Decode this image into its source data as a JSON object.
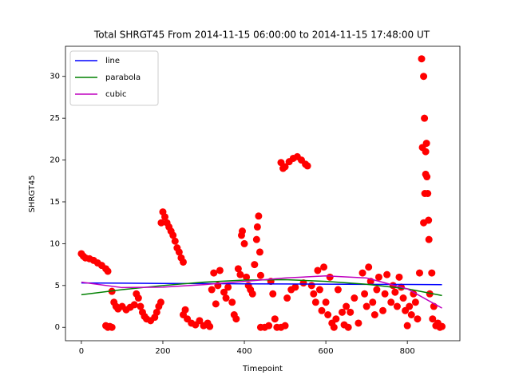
{
  "chart_data": {
    "type": "scatter",
    "title": "Total SHRGT45 From 2014-11-15 06:00:00 to 2014-11-15 17:48:00 UT",
    "xlabel": "Timepoint",
    "ylabel": "SHRGT45",
    "color": "#ff0000",
    "x": [
      0,
      5,
      10,
      20,
      30,
      40,
      50,
      60,
      65,
      60,
      65,
      70,
      75,
      75,
      80,
      85,
      90,
      100,
      110,
      120,
      130,
      135,
      140,
      145,
      150,
      155,
      160,
      170,
      180,
      185,
      190,
      195,
      196,
      200,
      205,
      210,
      215,
      220,
      225,
      230,
      235,
      240,
      245,
      250,
      250,
      255,
      260,
      270,
      280,
      290,
      300,
      310,
      315,
      320,
      325,
      330,
      335,
      340,
      350,
      355,
      360,
      370,
      375,
      380,
      385,
      390,
      393,
      395,
      400,
      405,
      410,
      415,
      420,
      425,
      430,
      432,
      435,
      438,
      440,
      440,
      450,
      460,
      465,
      470,
      475,
      480,
      490,
      500,
      490,
      495,
      500,
      510,
      520,
      530,
      540,
      550,
      555,
      505,
      515,
      525,
      545,
      565,
      570,
      575,
      580,
      585,
      590,
      595,
      600,
      605,
      610,
      615,
      620,
      625,
      630,
      640,
      645,
      650,
      655,
      660,
      670,
      680,
      690,
      695,
      700,
      705,
      710,
      715,
      720,
      725,
      730,
      740,
      745,
      750,
      760,
      765,
      770,
      775,
      780,
      785,
      790,
      795,
      800,
      805,
      810,
      815,
      820,
      825,
      830,
      835,
      837,
      840,
      842,
      843,
      845,
      847,
      848,
      850,
      852,
      853,
      855,
      860,
      862,
      865,
      870,
      875,
      880,
      885,
      840,
      845
    ],
    "values": [
      8.8,
      8.5,
      8.3,
      8.2,
      8.0,
      7.7,
      7.4,
      7.0,
      6.7,
      0.2,
      0,
      0.1,
      0,
      4.3,
      3.0,
      2.5,
      2.2,
      2.5,
      2.1,
      2.4,
      2.7,
      4.0,
      3.5,
      2.5,
      1.8,
      1.3,
      1.0,
      0.8,
      1.2,
      1.8,
      2.5,
      3.0,
      12.5,
      13.8,
      13.2,
      12.5,
      12.0,
      11.5,
      11.0,
      10.3,
      9.5,
      9.0,
      8.3,
      7.8,
      1.5,
      2.1,
      1.0,
      0.5,
      0.3,
      0.8,
      0.2,
      0.5,
      0.1,
      4.5,
      6.5,
      2.8,
      5.0,
      6.8,
      4.2,
      3.5,
      4.8,
      3.0,
      1.5,
      1.0,
      7.0,
      6.3,
      11.0,
      11.5,
      10.0,
      6.0,
      5.0,
      4.5,
      4.0,
      7.5,
      10.5,
      12.0,
      13.3,
      9.0,
      6.2,
      0,
      0,
      0.2,
      5.5,
      4.0,
      1.0,
      0,
      0,
      0.2,
      19.7,
      19.0,
      19.2,
      19.8,
      20.2,
      20.4,
      20.0,
      19.5,
      19.3,
      3.5,
      4.5,
      4.8,
      5.3,
      5.0,
      4.0,
      3.0,
      6.8,
      4.5,
      2.0,
      7.2,
      3.0,
      1.5,
      6.0,
      0.5,
      0,
      1.0,
      4.5,
      1.8,
      0.3,
      2.5,
      0,
      1.8,
      3.5,
      0.5,
      6.5,
      4.0,
      2.5,
      7.2,
      5.5,
      3.0,
      1.5,
      4.5,
      6.0,
      2.0,
      4.0,
      6.3,
      3.0,
      5.0,
      4.2,
      2.5,
      6.0,
      4.8,
      3.5,
      2.0,
      0.2,
      2.5,
      1.5,
      4.0,
      3.0,
      1.0,
      6.5,
      32.1,
      21.5,
      30.0,
      25.0,
      16.0,
      21.0,
      22.0,
      18.0,
      16.0,
      12.8,
      10.5,
      4.0,
      6.5,
      1.0,
      2.5,
      0.2,
      0.5,
      0,
      0.1,
      12.5,
      18.3
    ],
    "lines": [
      {
        "name": "line",
        "color": "#0000ff",
        "x": [
          0,
          100,
          200,
          300,
          400,
          500,
          600,
          700,
          800,
          885
        ],
        "values": [
          5.3,
          5.28,
          5.25,
          5.23,
          5.2,
          5.18,
          5.16,
          5.14,
          5.12,
          5.1
        ]
      },
      {
        "name": "parabola",
        "color": "#008000",
        "x": [
          0,
          100,
          200,
          300,
          400,
          500,
          600,
          700,
          800,
          885
        ],
        "values": [
          3.9,
          4.5,
          5.0,
          5.4,
          5.65,
          5.7,
          5.5,
          5.15,
          4.6,
          3.8
        ]
      },
      {
        "name": "cubic",
        "color": "#bf00bf",
        "x": [
          0,
          100,
          200,
          300,
          400,
          500,
          600,
          700,
          800,
          885
        ],
        "values": [
          5.4,
          4.75,
          4.8,
          5.1,
          5.5,
          5.9,
          6.15,
          5.9,
          4.6,
          2.3
        ]
      }
    ],
    "xlim": [
      -39,
      929
    ],
    "ylim": [
      -1.6,
      33.6
    ],
    "xticks": [
      0,
      200,
      400,
      600,
      800
    ],
    "yticks": [
      0,
      5,
      10,
      15,
      20,
      25,
      30
    ],
    "legend": "upper left"
  }
}
